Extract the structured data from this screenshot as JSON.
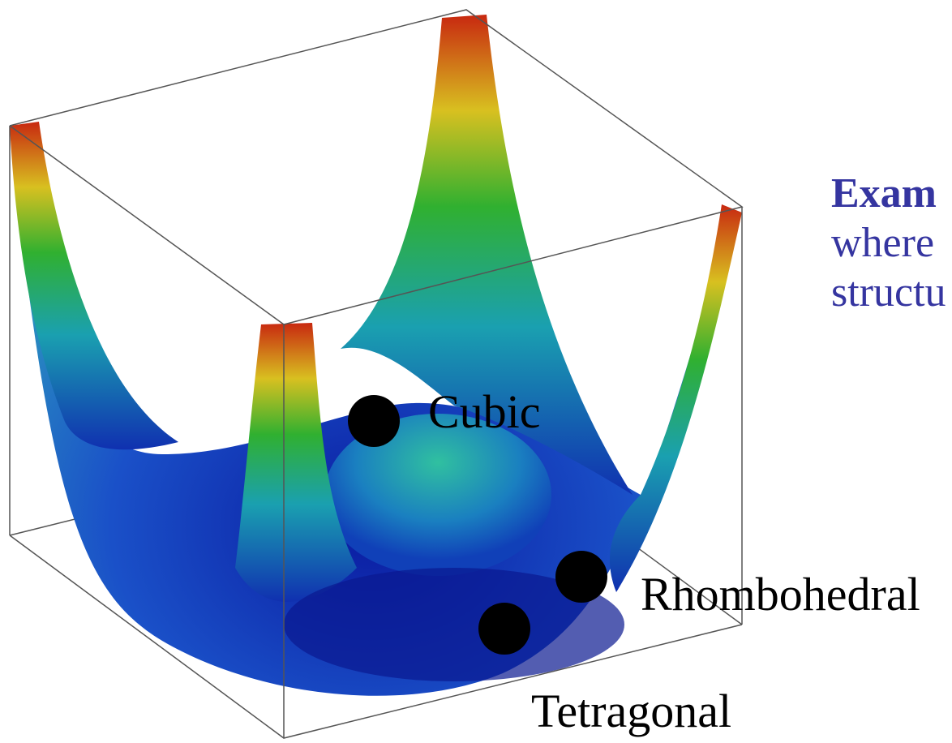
{
  "labels": {
    "cubic": "Cubic",
    "rhombohedral": "Rhombohedral",
    "tetragonal": "Tetragonal"
  },
  "caption": {
    "lines": [
      "Exam",
      "where",
      "structu"
    ]
  }
}
